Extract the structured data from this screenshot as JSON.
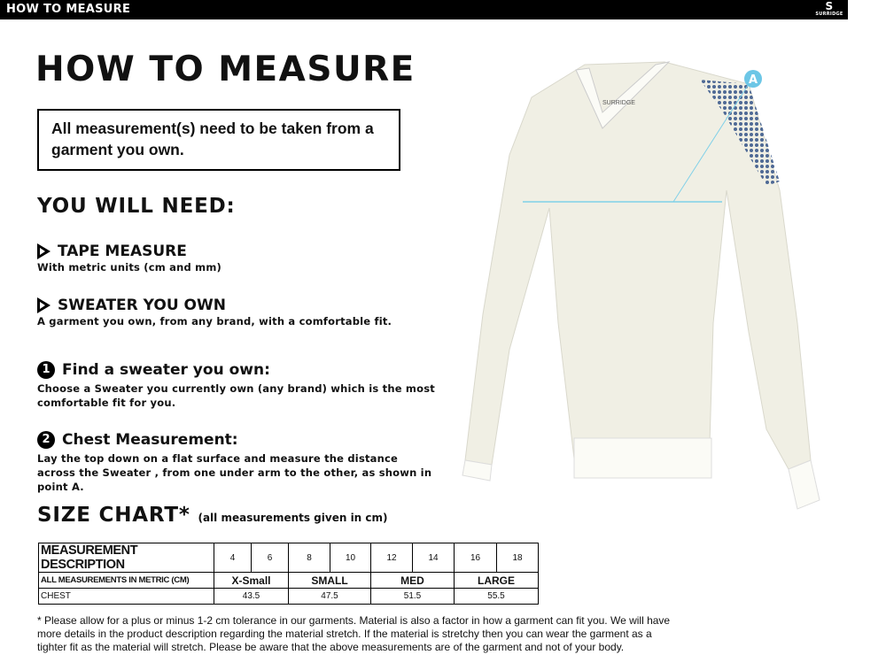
{
  "topbar": {
    "title": "HOW TO MEASURE",
    "logo": "SURRIDGE"
  },
  "title": "HOW TO MEASURE",
  "notice": "All measurement(s) need to be taken from a garment you own.",
  "you_will_need": "YOU WILL NEED:",
  "needs": [
    {
      "title": "TAPE MEASURE",
      "desc": "With metric units (cm and mm)"
    },
    {
      "title": "SWEATER YOU OWN",
      "desc": "A garment you own, from any brand, with a comfortable fit."
    }
  ],
  "steps": [
    {
      "num": "1",
      "title": "Find a sweater you own:",
      "desc": "Choose a Sweater you currently own (any brand) which is the most comfortable fit for you."
    },
    {
      "num": "2",
      "title": "Chest Measurement:",
      "desc": "Lay the top down on a flat surface and measure the distance across the Sweater , from one under arm to the other, as shown in point A."
    }
  ],
  "size_chart": {
    "title": "SIZE CHART*",
    "note": "(all measurements given in cm)",
    "header": "MEASUREMENT DESCRIPTION",
    "sizes": [
      "4",
      "6",
      "8",
      "10",
      "12",
      "14",
      "16",
      "18"
    ],
    "metric_label": "ALL MEASUREMENTS IN METRIC (CM)",
    "groups": [
      "X-Small",
      "SMALL",
      "MED",
      "LARGE"
    ],
    "row_label": "CHEST",
    "chest": [
      "43.5",
      "47.5",
      "51.5",
      "55.5"
    ]
  },
  "footnote": "* Please allow for a plus or minus 1-2 cm tolerance in our garments. Material is also a factor in how a garment can fit you. We will have more details in the product description regarding the material stretch.  If the material is stretchy then you can wear the garment as a tighter fit as the material will stretch.  Please be aware that the above measurements are of the garment and not of your body.",
  "diagram": {
    "point_label": "A",
    "neck_label": "SURRIDGE",
    "line_color": "#7fd0e8",
    "marker_color": "#6cc6e6"
  }
}
